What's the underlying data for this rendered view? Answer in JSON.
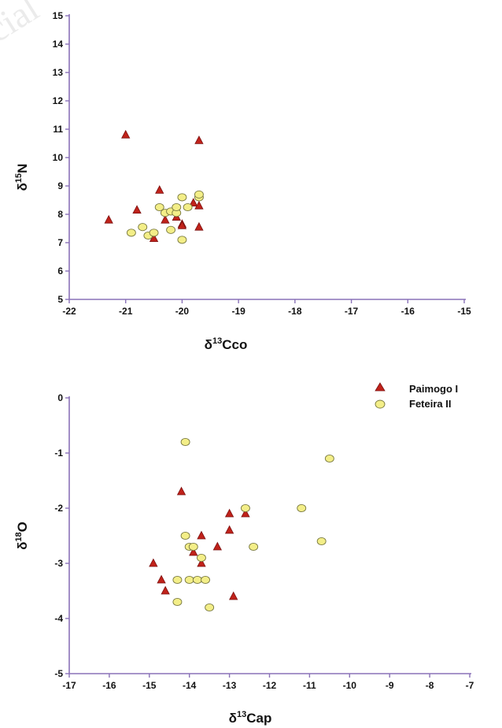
{
  "watermark_text": "cial",
  "colors": {
    "axis": "#8a72b8",
    "triangle": "#c0221a",
    "triangle_stroke": "#7a1010",
    "circle": "#f3ee88",
    "circle_stroke": "#7a7a40"
  },
  "chart_data": [
    {
      "type": "scatter",
      "title": "",
      "xlabel_prefix": "δ",
      "xlabel_sup": "13",
      "xlabel_suffix": "Cco",
      "ylabel_prefix": "δ",
      "ylabel_sup": "15",
      "ylabel_suffix": "N",
      "xlim": [
        -22,
        -15
      ],
      "ylim": [
        5,
        15
      ],
      "xticks": [
        -22,
        -21,
        -20,
        -19,
        -18,
        -17,
        -16,
        -15
      ],
      "yticks": [
        5,
        6,
        7,
        8,
        9,
        10,
        11,
        12,
        13,
        14,
        15
      ],
      "grid": false,
      "series": [
        {
          "name": "Paimogo I",
          "marker": "triangle",
          "points": [
            [
              -21.3,
              7.8
            ],
            [
              -21.0,
              10.8
            ],
            [
              -20.8,
              8.15
            ],
            [
              -20.5,
              7.15
            ],
            [
              -20.4,
              8.85
            ],
            [
              -20.3,
              7.8
            ],
            [
              -20.1,
              8.2
            ],
            [
              -20.1,
              7.9
            ],
            [
              -20.0,
              7.65
            ],
            [
              -20.0,
              7.6
            ],
            [
              -19.8,
              8.4
            ],
            [
              -19.7,
              10.6
            ],
            [
              -19.7,
              8.3
            ],
            [
              -19.7,
              7.55
            ]
          ]
        },
        {
          "name": "Feteira II",
          "marker": "circle",
          "points": [
            [
              -20.9,
              7.35
            ],
            [
              -20.7,
              7.55
            ],
            [
              -20.6,
              7.25
            ],
            [
              -20.5,
              7.35
            ],
            [
              -20.4,
              8.25
            ],
            [
              -20.3,
              8.05
            ],
            [
              -20.2,
              7.45
            ],
            [
              -20.2,
              8.1
            ],
            [
              -20.1,
              8.05
            ],
            [
              -20.1,
              8.25
            ],
            [
              -20.0,
              8.6
            ],
            [
              -20.0,
              7.1
            ],
            [
              -19.9,
              8.25
            ],
            [
              -19.7,
              8.6
            ],
            [
              -19.7,
              8.7
            ]
          ]
        }
      ]
    },
    {
      "type": "scatter",
      "title": "",
      "xlabel_prefix": "δ",
      "xlabel_sup": "13",
      "xlabel_suffix": "Cap",
      "ylabel_prefix": "δ",
      "ylabel_sup": "18",
      "ylabel_suffix": "O",
      "xlim": [
        -17,
        -7
      ],
      "ylim": [
        -5,
        0
      ],
      "xticks": [
        -17,
        -16,
        -15,
        -14,
        -13,
        -12,
        -11,
        -10,
        -9,
        -8,
        -7
      ],
      "yticks": [
        0,
        -1,
        -2,
        -3,
        -4,
        -5
      ],
      "grid": false,
      "legend_position": "top-right",
      "series": [
        {
          "name": "Paimogo I",
          "marker": "triangle",
          "points": [
            [
              -14.9,
              -3.0
            ],
            [
              -14.7,
              -3.3
            ],
            [
              -14.6,
              -3.5
            ],
            [
              -14.2,
              -1.7
            ],
            [
              -13.9,
              -2.8
            ],
            [
              -13.7,
              -2.5
            ],
            [
              -13.7,
              -3.0
            ],
            [
              -13.3,
              -2.7
            ],
            [
              -13.0,
              -2.1
            ],
            [
              -13.0,
              -2.4
            ],
            [
              -12.9,
              -3.6
            ],
            [
              -12.6,
              -2.1
            ]
          ]
        },
        {
          "name": "Feteira II",
          "marker": "circle",
          "points": [
            [
              -14.3,
              -3.3
            ],
            [
              -14.3,
              -3.7
            ],
            [
              -14.1,
              -0.8
            ],
            [
              -14.1,
              -2.5
            ],
            [
              -14.0,
              -2.7
            ],
            [
              -14.0,
              -3.3
            ],
            [
              -13.9,
              -2.7
            ],
            [
              -13.8,
              -3.3
            ],
            [
              -13.7,
              -2.9
            ],
            [
              -13.6,
              -3.3
            ],
            [
              -13.5,
              -3.8
            ],
            [
              -12.6,
              -2.0
            ],
            [
              -12.4,
              -2.7
            ],
            [
              -11.2,
              -2.0
            ],
            [
              -10.7,
              -2.6
            ],
            [
              -10.5,
              -1.1
            ]
          ]
        }
      ]
    }
  ]
}
